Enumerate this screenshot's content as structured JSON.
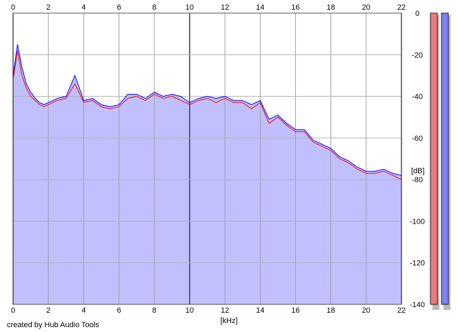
{
  "chart_data": {
    "type": "area",
    "xlabel": "[kHz]",
    "ylabel": "[dB]",
    "xlim": [
      0,
      22
    ],
    "ylim": [
      -140,
      0
    ],
    "x_ticks": [
      "0",
      "2",
      "4",
      "6",
      "8",
      "10",
      "12",
      "14",
      "16",
      "18",
      "20",
      "22"
    ],
    "y_ticks": [
      "0",
      "-20",
      "-40",
      "-60",
      "-80",
      "-100",
      "-120",
      "-140"
    ],
    "grid": true,
    "fill_color": "#c0c0ff",
    "series": [
      {
        "color": "#ff0000",
        "x": [
          0,
          0.25,
          0.5,
          0.75,
          1,
          1.25,
          1.5,
          1.75,
          2,
          2.5,
          3,
          3.5,
          4,
          4.5,
          5,
          5.5,
          6,
          6.5,
          7,
          7.5,
          8,
          8.5,
          9,
          9.5,
          10,
          10.5,
          11,
          11.5,
          12,
          12.5,
          13,
          13.5,
          14,
          14.5,
          15,
          15.5,
          16,
          16.5,
          17,
          17.5,
          18,
          18.5,
          19,
          19.5,
          20,
          20.5,
          21,
          21.5,
          22
        ],
        "y": [
          -32,
          -18,
          -30,
          -36,
          -40,
          -42,
          -44,
          -45,
          -44,
          -42,
          -41,
          -34,
          -43,
          -42,
          -45,
          -46,
          -45,
          -41,
          -40,
          -42,
          -39,
          -41,
          -40,
          -42,
          -44,
          -42,
          -41,
          -43,
          -41,
          -43,
          -43,
          -46,
          -43,
          -53,
          -50,
          -54,
          -57,
          -57,
          -62,
          -64,
          -66,
          -70,
          -72,
          -75,
          -77,
          -77,
          -76,
          -78,
          -80
        ]
      },
      {
        "color": "#0000ff",
        "x": [
          0,
          0.25,
          0.5,
          0.75,
          1,
          1.25,
          1.5,
          1.75,
          2,
          2.5,
          3,
          3.5,
          4,
          4.5,
          5,
          5.5,
          6,
          6.5,
          7,
          7.5,
          8,
          8.5,
          9,
          9.5,
          10,
          10.5,
          11,
          11.5,
          12,
          12.5,
          13,
          13.5,
          14,
          14.5,
          15,
          15.5,
          16,
          16.5,
          17,
          17.5,
          18,
          18.5,
          19,
          19.5,
          20,
          20.5,
          21,
          21.5,
          22
        ],
        "y": [
          -30,
          -15,
          -26,
          -34,
          -38,
          -41,
          -43,
          -44,
          -43,
          -41,
          -40,
          -30,
          -42,
          -41,
          -44,
          -45,
          -44,
          -39,
          -39,
          -41,
          -38,
          -40,
          -39,
          -40,
          -43,
          -41,
          -40,
          -41,
          -40,
          -42,
          -42,
          -44,
          -42,
          -51,
          -49,
          -53,
          -56,
          -56,
          -61,
          -63,
          -65,
          -69,
          -71,
          -74,
          -76,
          -76,
          -75,
          -77,
          -78
        ]
      }
    ],
    "meters": {
      "scale_min": -140,
      "scale_max": 0,
      "items": [
        {
          "color": "#f07878",
          "level_db": 0
        },
        {
          "color": "#8080f0",
          "level_db": 0
        }
      ]
    }
  },
  "footer": {
    "credit": "created by Hub Audio Tools"
  }
}
